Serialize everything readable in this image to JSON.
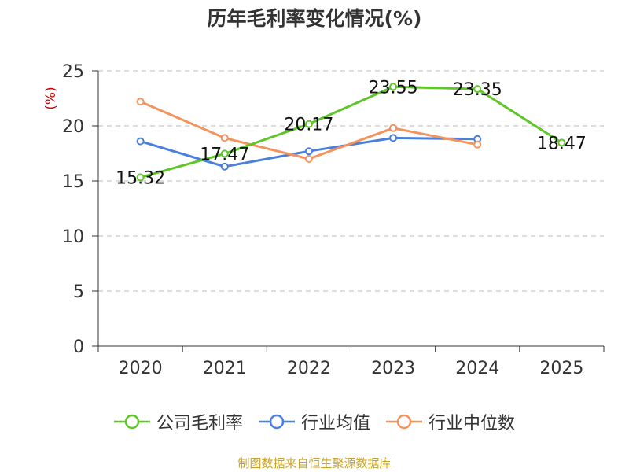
{
  "title": "历年毛利率变化情况(%)",
  "source": "制图数据来自恒生聚源数据库",
  "colors": {
    "gross": "#5fc62a",
    "avg": "#4a7fdb",
    "median": "#f4935e"
  },
  "chart_data": {
    "type": "line",
    "categories": [
      "2020",
      "2021",
      "2022",
      "2023",
      "2024",
      "2025"
    ],
    "ylabel": "(%)",
    "ylim": [
      0,
      25
    ],
    "yticks": [
      "0",
      "5",
      "10",
      "15",
      "20",
      "25"
    ],
    "grid": true,
    "legend_position": "bottom",
    "series": [
      {
        "name": "公司毛利率",
        "values": [
          15.32,
          17.47,
          20.17,
          23.55,
          23.35,
          18.47
        ],
        "labels": [
          "15.32",
          "17.47",
          "20.17",
          "23.55",
          "23.35",
          "18.47"
        ]
      },
      {
        "name": "行业均值",
        "values": [
          18.6,
          16.3,
          17.7,
          18.9,
          18.8,
          null
        ]
      },
      {
        "name": "行业中位数",
        "values": [
          22.2,
          18.9,
          17.0,
          19.8,
          18.3,
          null
        ]
      }
    ]
  }
}
